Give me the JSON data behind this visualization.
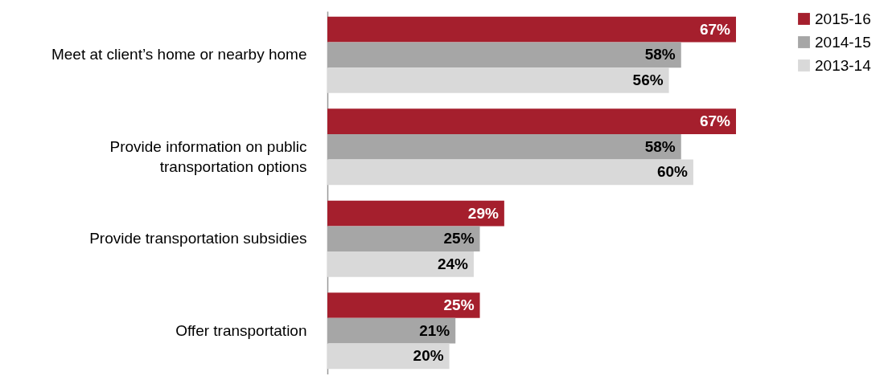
{
  "chart_data": {
    "type": "bar",
    "orientation": "horizontal",
    "categories": [
      "Meet at client’s home or nearby home",
      "Provide information on public transportation options",
      "Provide transportation subsidies",
      "Offer transportation"
    ],
    "series": [
      {
        "name": "2015-16",
        "color": "#a51f2d",
        "values": [
          67,
          67,
          29,
          25
        ],
        "value_labels": [
          "67%",
          "67%",
          "29%",
          "25%"
        ]
      },
      {
        "name": "2014-15",
        "color": "#a6a6a6",
        "values": [
          58,
          58,
          25,
          21
        ],
        "value_labels": [
          "58%",
          "58%",
          "25%",
          "21%"
        ]
      },
      {
        "name": "2013-14",
        "color": "#d9d9d9",
        "values": [
          56,
          60,
          24,
          20
        ],
        "value_labels": [
          "56%",
          "60%",
          "24%",
          "20%"
        ]
      }
    ],
    "legend": "right"
  }
}
